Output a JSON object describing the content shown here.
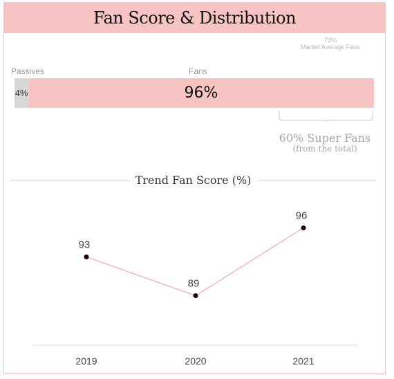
{
  "header": {
    "title": "Fan Score & Distribution"
  },
  "market_average": {
    "value": "73%",
    "label": "Market Average Fans"
  },
  "distribution": {
    "passives_label": "Passives",
    "fans_label": "Fans",
    "passives_value": "4%",
    "fans_value": "96%",
    "passives_fraction": 0.04,
    "fans_fraction": 0.96,
    "super_fans": "60% Super Fans",
    "super_fans_note": "(from the total)"
  },
  "trend": {
    "title": "Trend Fan Score (%)"
  },
  "colors": {
    "accent": "#f7c4c4",
    "passive": "#d8d8d8",
    "line": "#f3b9b9",
    "point": "#1a0000"
  },
  "chart_data": {
    "type": "line",
    "title": "Trend Fan Score (%)",
    "categories": [
      "2019",
      "2020",
      "2021"
    ],
    "series": [
      {
        "values": [
          93,
          89,
          96
        ]
      }
    ],
    "data_labels": [
      "93",
      "89",
      "96"
    ],
    "ylim": [
      82,
      100
    ],
    "grid": false
  }
}
